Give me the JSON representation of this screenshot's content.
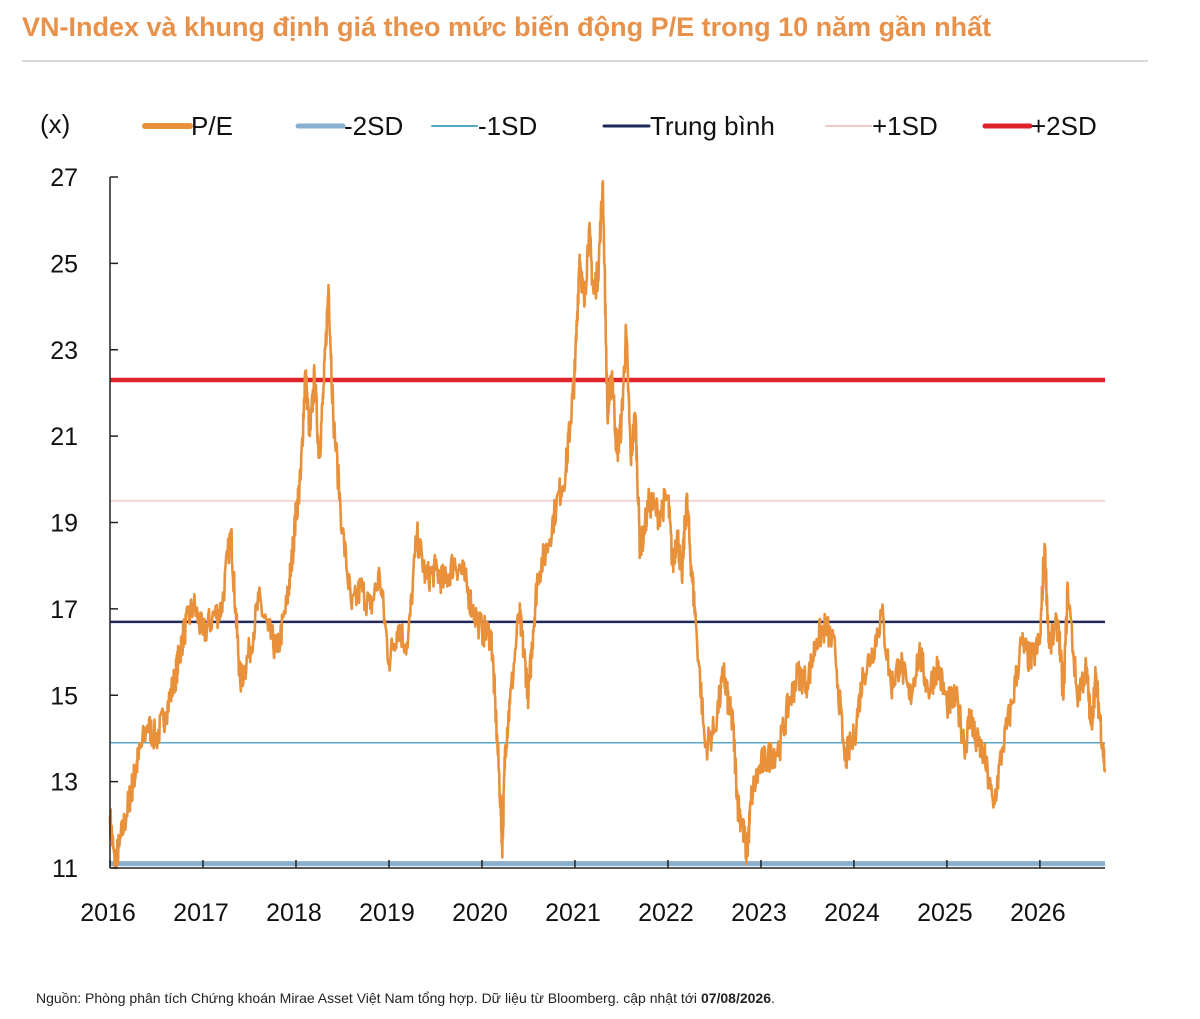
{
  "title": "VN-Index và khung định giá theo mức biến động P/E trong 10 năm gần nhất",
  "source": {
    "text": "Nguồn: Phòng phân tích Chứng khoán Mirae Asset Việt Nam tổng hợp. Dữ liệu từ Bloomberg. cập nhật tới ",
    "date": "07/08/2026",
    "suffix": "."
  },
  "chart_data": {
    "type": "line",
    "y_unit_label": "(x)",
    "ylim": [
      11,
      27
    ],
    "yticks": [
      11,
      13,
      15,
      17,
      19,
      21,
      23,
      25,
      27
    ],
    "xlim": [
      2016.0,
      2026.7
    ],
    "xticks": [
      2016,
      2017,
      2018,
      2019,
      2020,
      2021,
      2022,
      2023,
      2024,
      2025,
      2026
    ],
    "legend_position": "top",
    "grid": false,
    "series": [
      {
        "name": "P/E",
        "color": "#e8913a",
        "x": [
          2016.0,
          2016.05,
          2016.1,
          2016.2,
          2016.25,
          2016.3,
          2016.4,
          2016.5,
          2016.6,
          2016.7,
          2016.75,
          2016.8,
          2016.9,
          2017.0,
          2017.1,
          2017.2,
          2017.3,
          2017.35,
          2017.4,
          2017.5,
          2017.6,
          2017.7,
          2017.8,
          2017.9,
          2017.95,
          2018.0,
          2018.05,
          2018.1,
          2018.15,
          2018.2,
          2018.25,
          2018.3,
          2018.35,
          2018.4,
          2018.5,
          2018.6,
          2018.7,
          2018.8,
          2018.9,
          2019.0,
          2019.1,
          2019.2,
          2019.3,
          2019.4,
          2019.5,
          2019.6,
          2019.7,
          2019.8,
          2019.9,
          2020.0,
          2020.1,
          2020.15,
          2020.2,
          2020.22,
          2020.25,
          2020.3,
          2020.4,
          2020.45,
          2020.5,
          2020.55,
          2020.6,
          2020.7,
          2020.8,
          2020.9,
          2020.95,
          2021.0,
          2021.05,
          2021.1,
          2021.15,
          2021.2,
          2021.25,
          2021.3,
          2021.35,
          2021.4,
          2021.45,
          2021.5,
          2021.55,
          2021.6,
          2021.65,
          2021.7,
          2021.8,
          2021.9,
          2022.0,
          2022.05,
          2022.1,
          2022.15,
          2022.2,
          2022.25,
          2022.3,
          2022.4,
          2022.5,
          2022.6,
          2022.65,
          2022.7,
          2022.75,
          2022.8,
          2022.85,
          2022.9,
          2023.0,
          2023.1,
          2023.2,
          2023.3,
          2023.4,
          2023.5,
          2023.6,
          2023.7,
          2023.8,
          2023.9,
          2024.0,
          2024.1,
          2024.2,
          2024.3,
          2024.4,
          2024.5,
          2024.6,
          2024.7,
          2024.8,
          2024.9,
          2025.0,
          2025.1,
          2025.2,
          2025.25,
          2025.3,
          2025.4,
          2025.5,
          2025.6,
          2025.7,
          2025.8,
          2025.9,
          2026.0,
          2026.05,
          2026.1,
          2026.2,
          2026.25,
          2026.3,
          2026.4,
          2026.5,
          2026.55,
          2026.6,
          2026.65,
          2026.7
        ],
        "y": [
          12.2,
          11.1,
          11.5,
          12.5,
          13.0,
          13.5,
          14.3,
          14.0,
          14.6,
          15.4,
          16.0,
          16.5,
          17.1,
          16.4,
          16.8,
          17.0,
          18.8,
          17.0,
          15.3,
          16.0,
          17.2,
          16.5,
          16.0,
          17.1,
          18.0,
          19.2,
          20.0,
          22.5,
          21.0,
          22.4,
          20.5,
          22.2,
          24.5,
          21.5,
          18.8,
          17.0,
          17.5,
          17.0,
          17.8,
          15.8,
          16.6,
          16.1,
          18.7,
          17.7,
          17.9,
          17.6,
          18.1,
          17.8,
          17.0,
          16.5,
          16.4,
          14.5,
          12.5,
          11.5,
          13.8,
          14.8,
          16.9,
          16.0,
          15.0,
          16.5,
          17.8,
          18.4,
          19.4,
          20.2,
          21.3,
          22.5,
          25.2,
          24.0,
          25.8,
          24.3,
          24.8,
          26.9,
          21.4,
          22.5,
          20.6,
          21.3,
          23.4,
          20.5,
          21.5,
          18.3,
          19.5,
          19.2,
          19.6,
          18.0,
          18.8,
          17.7,
          19.6,
          18.0,
          16.7,
          13.8,
          14.2,
          15.5,
          14.8,
          14.3,
          12.5,
          12.0,
          11.3,
          12.7,
          13.4,
          13.6,
          13.8,
          14.8,
          15.5,
          15.3,
          16.3,
          16.6,
          16.0,
          13.5,
          14.0,
          15.5,
          16.0,
          16.9,
          15.2,
          15.8,
          14.9,
          16.0,
          15.1,
          15.7,
          14.8,
          14.9,
          13.8,
          14.6,
          14.0,
          13.6,
          12.4,
          13.8,
          14.8,
          16.2,
          15.8,
          16.2,
          18.5,
          16.1,
          16.7,
          14.9,
          17.5,
          15.0,
          15.6,
          14.3,
          15.4,
          14.4,
          13.3
        ]
      },
      {
        "name": "-2SD",
        "color": "#8ab0cf",
        "value": 11.1
      },
      {
        "name": "-1SD",
        "color": "#58a8c4",
        "value": 13.9
      },
      {
        "name": "Trung bình",
        "color": "#1f2a5a",
        "value": 16.7
      },
      {
        "name": "+1SD",
        "color": "#f1c9c4",
        "value": 19.5
      },
      {
        "name": "+2SD",
        "color": "#e0222a",
        "value": 22.3
      }
    ]
  }
}
